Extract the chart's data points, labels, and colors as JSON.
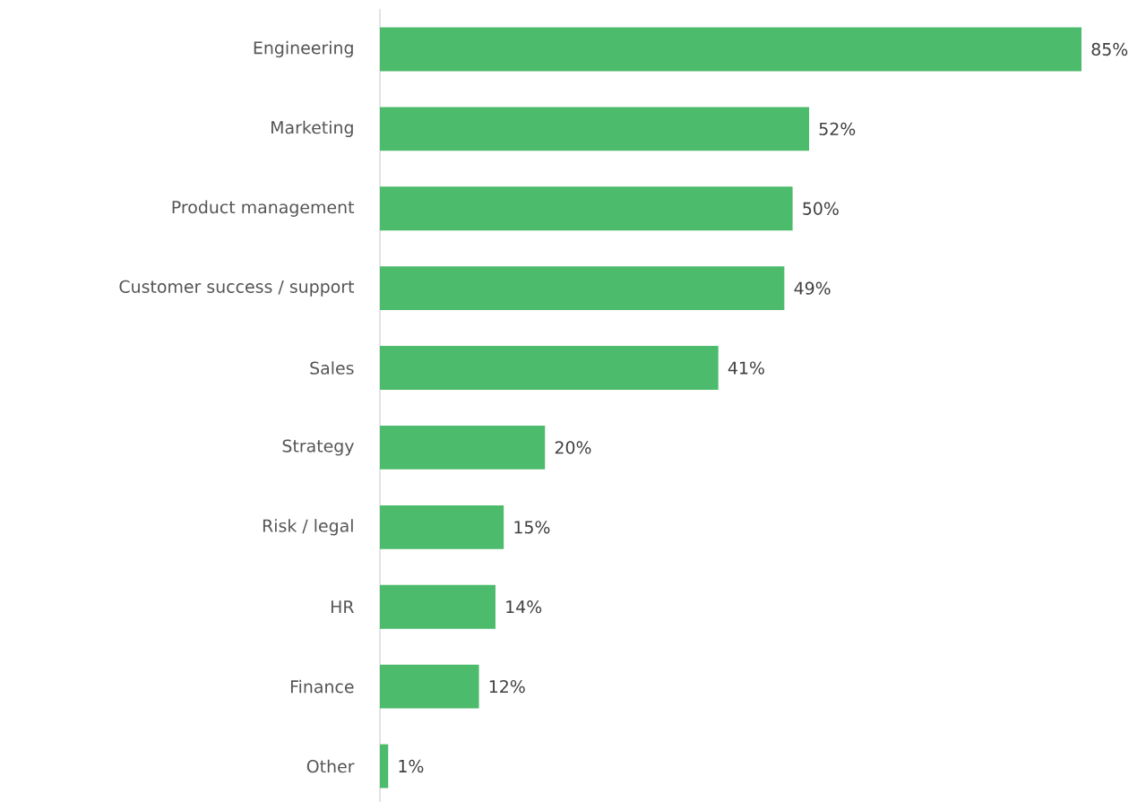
{
  "chart_data": {
    "type": "bar",
    "orientation": "horizontal",
    "categories": [
      "Engineering",
      "Marketing",
      "Product management",
      "Customer success / support",
      "Sales",
      "Strategy",
      "Risk / legal",
      "HR",
      "Finance",
      "Other"
    ],
    "values": [
      85,
      52,
      50,
      49,
      41,
      20,
      15,
      14,
      12,
      1
    ],
    "value_labels": [
      "85%",
      "52%",
      "50%",
      "49%",
      "41%",
      "20%",
      "15%",
      "14%",
      "12%",
      "1%"
    ],
    "color": "#4cbb6c"
  }
}
